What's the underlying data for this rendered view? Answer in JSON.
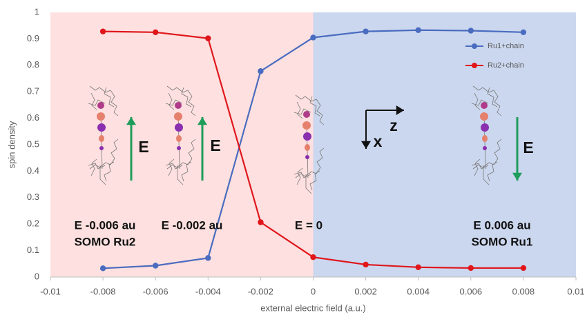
{
  "chart_data": {
    "type": "line",
    "x": [
      -0.008,
      -0.006,
      -0.004,
      -0.002,
      0,
      0.002,
      0.004,
      0.006,
      0.008
    ],
    "series": [
      {
        "name": "Ru1+chain",
        "color": "#4a6cc0",
        "values": [
          0.033,
          0.043,
          0.072,
          0.778,
          0.905,
          0.928,
          0.933,
          0.931,
          0.925
        ]
      },
      {
        "name": "Ru2+chain",
        "color": "#e0161b",
        "values": [
          0.928,
          0.925,
          0.902,
          0.207,
          0.075,
          0.047,
          0.037,
          0.034,
          0.034
        ]
      }
    ],
    "xlim": [
      -0.01,
      0.01
    ],
    "xticks": [
      -0.01,
      -0.008,
      -0.006,
      -0.004,
      -0.002,
      0,
      0.002,
      0.004,
      0.006,
      0.008,
      0.01
    ],
    "ylim": [
      0,
      1
    ],
    "yticks": [
      0,
      0.1,
      0.2,
      0.3,
      0.4,
      0.5,
      0.6,
      0.7,
      0.8,
      0.9,
      1
    ],
    "grid": false,
    "x_label": "external electric field (a.u.)",
    "y_label": "spin density",
    "legend_position": "upper right",
    "regions": [
      {
        "from": -0.01,
        "to": 0,
        "color": "#fde0df"
      },
      {
        "from": 0,
        "to": 0.01,
        "color": "#cbd7ee"
      }
    ],
    "annotations": [
      "E -0.006 au",
      "SOMO Ru2",
      "E -0.002 au",
      "E = 0",
      "E 0.006 au",
      "SOMO Ru1",
      "E",
      "E",
      "E",
      "z",
      "x"
    ]
  }
}
